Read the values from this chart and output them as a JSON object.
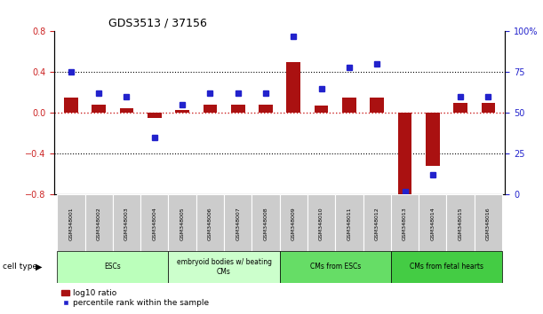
{
  "title": "GDS3513 / 37156",
  "samples": [
    "GSM348001",
    "GSM348002",
    "GSM348003",
    "GSM348004",
    "GSM348005",
    "GSM348006",
    "GSM348007",
    "GSM348008",
    "GSM348009",
    "GSM348010",
    "GSM348011",
    "GSM348012",
    "GSM348013",
    "GSM348014",
    "GSM348015",
    "GSM348016"
  ],
  "log10_ratio": [
    0.15,
    0.08,
    0.05,
    -0.05,
    0.03,
    0.08,
    0.08,
    0.08,
    0.5,
    0.07,
    0.15,
    0.15,
    -0.8,
    -0.52,
    0.1,
    0.1
  ],
  "percentile_rank": [
    75,
    62,
    60,
    35,
    55,
    62,
    62,
    62,
    97,
    65,
    78,
    80,
    2,
    12,
    60,
    60
  ],
  "bar_color": "#aa1111",
  "dot_color": "#2222cc",
  "zero_line_color": "#cc2222",
  "ylim_left": [
    -0.8,
    0.8
  ],
  "ylim_right": [
    0,
    100
  ],
  "yticks_left": [
    -0.8,
    -0.4,
    0.0,
    0.4,
    0.8
  ],
  "yticks_right": [
    0,
    25,
    50,
    75,
    100
  ],
  "ytick_labels_right": [
    "0",
    "25",
    "50",
    "75",
    "100%"
  ],
  "cell_type_groups": [
    {
      "label": "ESCs",
      "start": 0,
      "end": 3,
      "color": "#bbffbb"
    },
    {
      "label": "embryoid bodies w/ beating\nCMs",
      "start": 4,
      "end": 7,
      "color": "#ccffcc"
    },
    {
      "label": "CMs from ESCs",
      "start": 8,
      "end": 11,
      "color": "#66dd66"
    },
    {
      "label": "CMs from fetal hearts",
      "start": 12,
      "end": 15,
      "color": "#44cc44"
    }
  ],
  "cell_type_label": "cell type",
  "legend_bar_label": "log10 ratio",
  "legend_dot_label": "percentile rank within the sample",
  "background_plot": "#ffffff",
  "axis_label_color_left": "#cc2222",
  "axis_label_color_right": "#2222cc",
  "sample_box_color": "#cccccc",
  "bar_width": 0.5
}
